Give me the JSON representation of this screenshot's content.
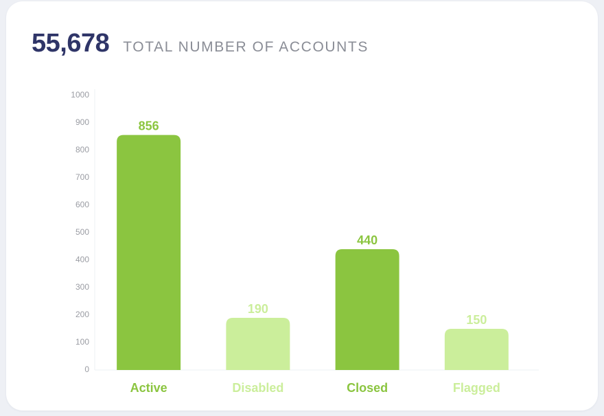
{
  "summary": {
    "total": "55,678",
    "label": "TOTAL NUMBER OF ACCOUNTS"
  },
  "colors": {
    "dark_green": "#8bc540",
    "light_green": "#cbee9b",
    "heading": "#2f3568",
    "muted": "#8a8d96"
  },
  "chart_data": {
    "type": "bar",
    "title": "",
    "xlabel": "",
    "ylabel": "",
    "categories": [
      "Active",
      "Disabled",
      "Closed",
      "Flagged"
    ],
    "values": [
      856,
      190,
      440,
      150
    ],
    "value_labels": [
      "856",
      "190",
      "440",
      "150"
    ],
    "bar_colors": [
      "#8bc540",
      "#cbee9b",
      "#8bc540",
      "#cbee9b"
    ],
    "ylim": [
      0,
      1000
    ],
    "yticks": [
      "0",
      "100",
      "200",
      "300",
      "400",
      "500",
      "600",
      "700",
      "800",
      "900",
      "1000"
    ],
    "grid": false,
    "legend": "none"
  }
}
